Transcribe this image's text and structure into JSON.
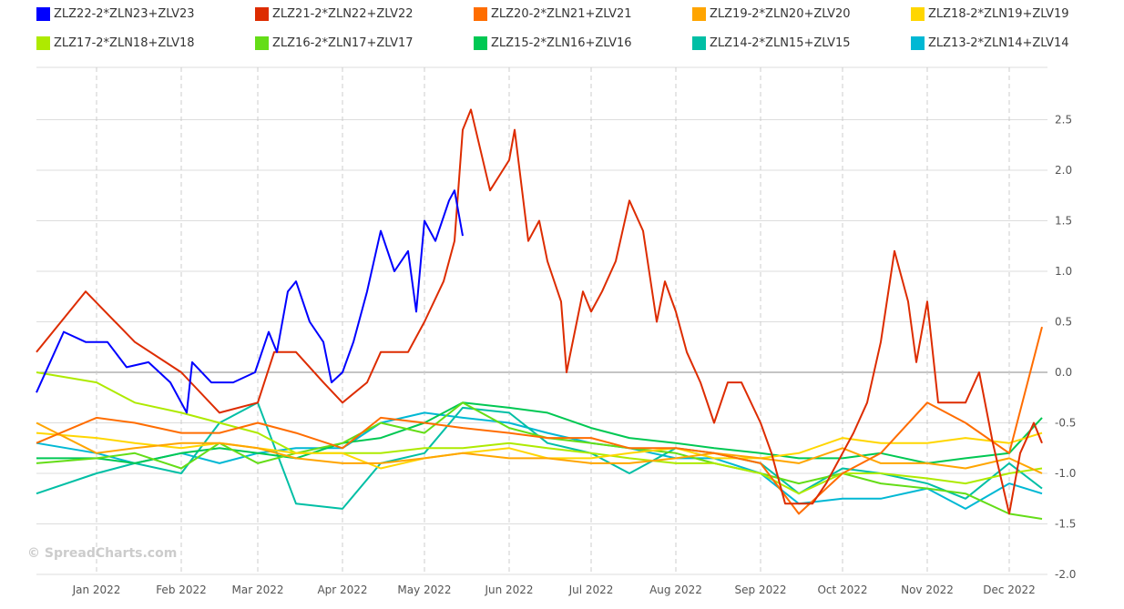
{
  "watermark": "© SpreadCharts.com",
  "chart_data": {
    "type": "line",
    "ylim": [
      -2.0,
      2.9
    ],
    "yticks": [
      "-2.0",
      "-1.5",
      "-1.0",
      "-0.5",
      "0.0",
      "0.5",
      "1.0",
      "1.5",
      "2.0",
      "2.5"
    ],
    "xlim": [
      "2021-12-10",
      "2022-12-15"
    ],
    "xticks": [
      {
        "date": "2022-01-01",
        "label": "Jan 2022"
      },
      {
        "date": "2022-02-01",
        "label": "Feb 2022"
      },
      {
        "date": "2022-03-01",
        "label": "Mar 2022"
      },
      {
        "date": "2022-04-01",
        "label": "Apr 2022"
      },
      {
        "date": "2022-05-01",
        "label": "May 2022"
      },
      {
        "date": "2022-06-01",
        "label": "Jun 2022"
      },
      {
        "date": "2022-07-01",
        "label": "Jul 2022"
      },
      {
        "date": "2022-08-01",
        "label": "Aug 2022"
      },
      {
        "date": "2022-09-01",
        "label": "Sep 2022"
      },
      {
        "date": "2022-10-01",
        "label": "Oct 2022"
      },
      {
        "date": "2022-11-01",
        "label": "Nov 2022"
      },
      {
        "date": "2022-12-01",
        "label": "Dec 2022"
      }
    ],
    "grid": true,
    "legend_placement": "top",
    "common_x": [
      "2021-12-10",
      "2022-01-01",
      "2022-01-15",
      "2022-02-01",
      "2022-02-15",
      "2022-03-01",
      "2022-03-15",
      "2022-04-01",
      "2022-04-15",
      "2022-05-01",
      "2022-05-15",
      "2022-06-01",
      "2022-06-15",
      "2022-07-01",
      "2022-07-15",
      "2022-08-01",
      "2022-08-15",
      "2022-09-01",
      "2022-09-15",
      "2022-10-01",
      "2022-10-15",
      "2022-11-01",
      "2022-11-15",
      "2022-12-01",
      "2022-12-13"
    ],
    "series": [
      {
        "name": "ZLZ22-2*ZLN23+ZLV23",
        "color": "#0000ff",
        "x": [
          "2021-12-10",
          "2021-12-20",
          "2021-12-28",
          "2022-01-05",
          "2022-01-12",
          "2022-01-20",
          "2022-01-28",
          "2022-02-03",
          "2022-02-05",
          "2022-02-12",
          "2022-02-20",
          "2022-02-28",
          "2022-03-05",
          "2022-03-08",
          "2022-03-12",
          "2022-03-15",
          "2022-03-20",
          "2022-03-25",
          "2022-03-28",
          "2022-04-01",
          "2022-04-05",
          "2022-04-10",
          "2022-04-15",
          "2022-04-20",
          "2022-04-25",
          "2022-04-28",
          "2022-05-01",
          "2022-05-05",
          "2022-05-10",
          "2022-05-12",
          "2022-05-15"
        ],
        "y": [
          -0.2,
          0.4,
          0.3,
          0.3,
          0.05,
          0.1,
          -0.1,
          -0.4,
          0.1,
          -0.1,
          -0.1,
          0.0,
          0.4,
          0.2,
          0.8,
          0.9,
          0.5,
          0.3,
          -0.1,
          0.0,
          0.3,
          0.8,
          1.4,
          1.0,
          1.2,
          0.6,
          1.5,
          1.3,
          1.7,
          1.8,
          1.35
        ]
      },
      {
        "name": "ZLZ21-2*ZLN22+ZLV22",
        "color": "#dd2c00",
        "x": [
          "2021-12-10",
          "2021-12-28",
          "2022-01-15",
          "2022-02-01",
          "2022-02-15",
          "2022-03-01",
          "2022-03-07",
          "2022-03-15",
          "2022-03-25",
          "2022-04-01",
          "2022-04-10",
          "2022-04-15",
          "2022-04-25",
          "2022-05-01",
          "2022-05-08",
          "2022-05-12",
          "2022-05-15",
          "2022-05-18",
          "2022-05-25",
          "2022-06-01",
          "2022-06-03",
          "2022-06-08",
          "2022-06-12",
          "2022-06-15",
          "2022-06-20",
          "2022-06-22",
          "2022-06-28",
          "2022-07-01",
          "2022-07-05",
          "2022-07-10",
          "2022-07-15",
          "2022-07-20",
          "2022-07-25",
          "2022-07-28",
          "2022-08-01",
          "2022-08-05",
          "2022-08-10",
          "2022-08-15",
          "2022-08-20",
          "2022-08-25",
          "2022-09-01",
          "2022-09-05",
          "2022-09-10",
          "2022-09-20",
          "2022-09-25",
          "2022-10-01",
          "2022-10-05",
          "2022-10-10",
          "2022-10-15",
          "2022-10-20",
          "2022-10-25",
          "2022-10-28",
          "2022-11-01",
          "2022-11-05",
          "2022-11-10",
          "2022-11-15",
          "2022-11-20",
          "2022-11-25",
          "2022-12-01",
          "2022-12-05",
          "2022-12-10",
          "2022-12-13"
        ],
        "y": [
          0.2,
          0.8,
          0.3,
          0.0,
          -0.4,
          -0.3,
          0.2,
          0.2,
          -0.1,
          -0.3,
          -0.1,
          0.2,
          0.2,
          0.5,
          0.9,
          1.3,
          2.4,
          2.6,
          1.8,
          2.1,
          2.4,
          1.3,
          1.5,
          1.1,
          0.7,
          0.0,
          0.8,
          0.6,
          0.8,
          1.1,
          1.7,
          1.4,
          0.5,
          0.9,
          0.6,
          0.2,
          -0.1,
          -0.5,
          -0.1,
          -0.1,
          -0.5,
          -0.8,
          -1.3,
          -1.3,
          -1.1,
          -0.8,
          -0.6,
          -0.3,
          0.3,
          1.2,
          0.7,
          0.1,
          0.7,
          -0.3,
          -0.3,
          -0.3,
          0.0,
          -0.7,
          -1.4,
          -0.8,
          -0.5,
          -0.7
        ]
      },
      {
        "name": "ZLZ20-2*ZLN21+ZLV21",
        "color": "#ff6d00",
        "x": "common",
        "y": [
          -0.7,
          -0.45,
          -0.5,
          -0.6,
          -0.6,
          -0.5,
          -0.6,
          -0.75,
          -0.45,
          -0.5,
          -0.55,
          -0.6,
          -0.65,
          -0.65,
          -0.75,
          -0.75,
          -0.8,
          -0.9,
          -1.4,
          -1.0,
          -0.8,
          -0.3,
          -0.5,
          -0.8,
          0.45
        ]
      },
      {
        "name": "ZLZ19-2*ZLN20+ZLV20",
        "color": "#ffa500",
        "x": "common",
        "y": [
          -0.5,
          -0.8,
          -0.75,
          -0.7,
          -0.7,
          -0.75,
          -0.85,
          -0.9,
          -0.9,
          -0.85,
          -0.8,
          -0.85,
          -0.85,
          -0.9,
          -0.9,
          -0.85,
          -0.8,
          -0.85,
          -0.9,
          -0.75,
          -0.9,
          -0.9,
          -0.95,
          -0.85,
          -1.0
        ]
      },
      {
        "name": "ZLZ18-2*ZLN19+ZLV19",
        "color": "#ffd600",
        "x": "common",
        "y": [
          -0.6,
          -0.65,
          -0.7,
          -0.75,
          -0.7,
          -0.75,
          -0.8,
          -0.8,
          -0.95,
          -0.85,
          -0.8,
          -0.75,
          -0.85,
          -0.85,
          -0.8,
          -0.75,
          -0.85,
          -0.85,
          -0.8,
          -0.65,
          -0.7,
          -0.7,
          -0.65,
          -0.7,
          -0.6
        ]
      },
      {
        "name": "ZLZ17-2*ZLN18+ZLV18",
        "color": "#aeea00",
        "x": "common",
        "y": [
          0.0,
          -0.1,
          -0.3,
          -0.4,
          -0.5,
          -0.6,
          -0.8,
          -0.8,
          -0.8,
          -0.75,
          -0.75,
          -0.7,
          -0.75,
          -0.8,
          -0.85,
          -0.9,
          -0.9,
          -1.0,
          -1.2,
          -1.0,
          -1.0,
          -1.05,
          -1.1,
          -1.0,
          -0.95
        ]
      },
      {
        "name": "ZLZ16-2*ZLN17+ZLV17",
        "color": "#64dd17",
        "x": "common",
        "y": [
          -0.9,
          -0.85,
          -0.8,
          -0.95,
          -0.7,
          -0.9,
          -0.8,
          -0.7,
          -0.5,
          -0.6,
          -0.3,
          -0.55,
          -0.65,
          -0.7,
          -0.75,
          -0.8,
          -0.9,
          -1.0,
          -1.1,
          -1.0,
          -1.1,
          -1.15,
          -1.2,
          -1.4,
          -1.45
        ]
      },
      {
        "name": "ZLZ15-2*ZLN16+ZLV16",
        "color": "#00c853",
        "x": "common",
        "y": [
          -0.85,
          -0.85,
          -0.9,
          -0.8,
          -0.75,
          -0.8,
          -0.85,
          -0.7,
          -0.65,
          -0.5,
          -0.3,
          -0.35,
          -0.4,
          -0.55,
          -0.65,
          -0.7,
          -0.75,
          -0.8,
          -0.85,
          -0.85,
          -0.8,
          -0.9,
          -0.85,
          -0.8,
          -0.45
        ]
      },
      {
        "name": "ZLZ14-2*ZLN15+ZLV15",
        "color": "#00bfa5",
        "x": "common",
        "y": [
          -1.2,
          -1.0,
          -0.9,
          -1.0,
          -0.5,
          -0.3,
          -1.3,
          -1.35,
          -0.9,
          -0.8,
          -0.35,
          -0.4,
          -0.7,
          -0.8,
          -1.0,
          -0.75,
          -0.8,
          -0.9,
          -1.2,
          -0.95,
          -1.0,
          -1.1,
          -1.25,
          -0.9,
          -1.15
        ]
      },
      {
        "name": "ZLZ13-2*ZLN14+ZLV14",
        "color": "#00b8d4",
        "x": "common",
        "y": [
          -0.7,
          -0.8,
          -0.9,
          -0.8,
          -0.9,
          -0.8,
          -0.75,
          -0.75,
          -0.5,
          -0.4,
          -0.45,
          -0.5,
          -0.6,
          -0.7,
          -0.75,
          -0.85,
          -0.85,
          -1.0,
          -1.3,
          -1.25,
          -1.25,
          -1.15,
          -1.35,
          -1.1,
          -1.2
        ]
      }
    ]
  }
}
